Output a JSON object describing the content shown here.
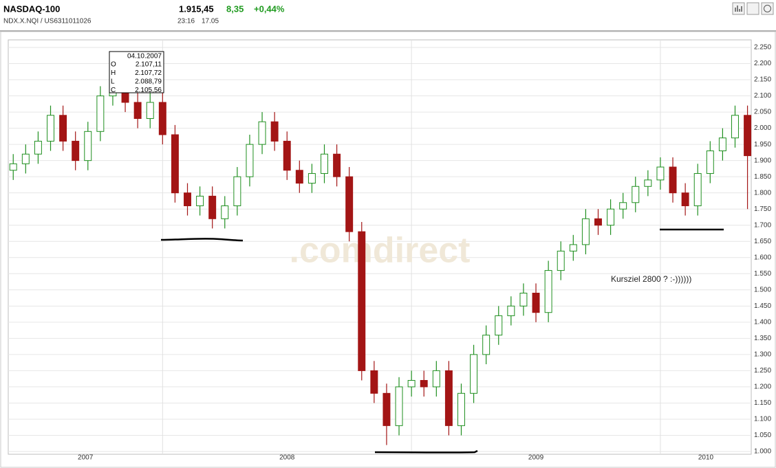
{
  "header": {
    "title": "NASDAQ-100",
    "ids": "NDX.X.NQI  /  US6311011026",
    "price": "1.915,45",
    "change": "8,35",
    "change_pct": "+0,44%",
    "time": "23:16",
    "date": "17.05"
  },
  "tooltip": {
    "date": "04.10.2007",
    "rows": [
      [
        "O",
        "2.107,11"
      ],
      [
        "H",
        "2.107,72"
      ],
      [
        "L",
        "2.088,79"
      ],
      [
        "C",
        "2.105,56"
      ]
    ]
  },
  "watermark": ".comdirect",
  "chart_data": {
    "type": "candlestick",
    "annotation": "Kursziel 2800 ? :-))))))",
    "up_color": "#1f8f1f",
    "down_color": "#a31515",
    "x": [
      2007.4,
      2007.45,
      2007.5,
      2007.55,
      2007.6,
      2007.65,
      2007.7,
      2007.75,
      2007.8,
      2007.85,
      2007.9,
      2007.95,
      2008.0,
      2008.05,
      2008.1,
      2008.15,
      2008.2,
      2008.25,
      2008.3,
      2008.35,
      2008.4,
      2008.45,
      2008.5,
      2008.55,
      2008.6,
      2008.65,
      2008.7,
      2008.75,
      2008.8,
      2008.85,
      2008.9,
      2008.95,
      2009.0,
      2009.05,
      2009.1,
      2009.15,
      2009.2,
      2009.25,
      2009.3,
      2009.35,
      2009.4,
      2009.45,
      2009.5,
      2009.55,
      2009.6,
      2009.65,
      2009.7,
      2009.75,
      2009.8,
      2009.85,
      2009.9,
      2009.95,
      2010.0,
      2010.05,
      2010.1,
      2010.15,
      2010.2,
      2010.25,
      2010.3,
      2010.35
    ],
    "open": [
      1870,
      1890,
      1920,
      1960,
      2040,
      1960,
      1900,
      1990,
      2100,
      2180,
      2080,
      2030,
      2080,
      1980,
      1800,
      1760,
      1790,
      1720,
      1760,
      1850,
      1950,
      2020,
      1960,
      1870,
      1830,
      1860,
      1920,
      1850,
      1680,
      1250,
      1180,
      1080,
      1200,
      1220,
      1200,
      1250,
      1080,
      1180,
      1300,
      1360,
      1420,
      1450,
      1490,
      1430,
      1560,
      1620,
      1640,
      1720,
      1700,
      1750,
      1770,
      1820,
      1840,
      1880,
      1800,
      1760,
      1860,
      1930,
      1970,
      2040
    ],
    "high": [
      1920,
      1950,
      1990,
      2070,
      2070,
      1990,
      2020,
      2130,
      2210,
      2210,
      2110,
      2110,
      2110,
      2010,
      1830,
      1820,
      1820,
      1790,
      1880,
      1980,
      2050,
      2050,
      1990,
      1900,
      1890,
      1950,
      1950,
      1880,
      1710,
      1280,
      1210,
      1230,
      1250,
      1250,
      1280,
      1280,
      1210,
      1330,
      1390,
      1450,
      1480,
      1520,
      1520,
      1590,
      1650,
      1670,
      1750,
      1750,
      1780,
      1800,
      1850,
      1870,
      1910,
      1910,
      1830,
      1890,
      1960,
      2000,
      2070,
      2070
    ],
    "low": [
      1840,
      1860,
      1890,
      1930,
      1930,
      1870,
      1870,
      1960,
      2070,
      2050,
      2000,
      2000,
      1950,
      1770,
      1730,
      1730,
      1690,
      1690,
      1730,
      1820,
      1920,
      1930,
      1840,
      1800,
      1800,
      1830,
      1820,
      1650,
      1220,
      1150,
      1020,
      1050,
      1170,
      1170,
      1170,
      1050,
      1050,
      1150,
      1270,
      1330,
      1390,
      1420,
      1400,
      1400,
      1530,
      1590,
      1610,
      1670,
      1670,
      1720,
      1740,
      1790,
      1810,
      1770,
      1730,
      1730,
      1830,
      1900,
      1940,
      1750
    ],
    "close": [
      1890,
      1920,
      1960,
      2040,
      1960,
      1900,
      1990,
      2100,
      2180,
      2080,
      2030,
      2080,
      1980,
      1800,
      1760,
      1790,
      1720,
      1760,
      1850,
      1950,
      2020,
      1960,
      1870,
      1830,
      1860,
      1920,
      1850,
      1680,
      1250,
      1180,
      1080,
      1200,
      1220,
      1200,
      1250,
      1080,
      1180,
      1300,
      1360,
      1420,
      1450,
      1490,
      1430,
      1560,
      1620,
      1640,
      1720,
      1700,
      1750,
      1770,
      1820,
      1840,
      1880,
      1800,
      1760,
      1860,
      1930,
      1970,
      2040,
      1915
    ],
    "xlim": [
      2007.38,
      2010.365
    ],
    "xgrid": [
      2008,
      2009,
      2010
    ],
    "xlabels": [
      "2007",
      "2008",
      "2009",
      "2010"
    ],
    "ylim": [
      1000,
      2250
    ],
    "yticks": [
      {
        "value": 1000,
        "label": "1.000"
      },
      {
        "value": 1050,
        "label": "1.050"
      },
      {
        "value": 1100,
        "label": "1.100"
      },
      {
        "value": 1150,
        "label": "1.150"
      },
      {
        "value": 1200,
        "label": "1.200"
      },
      {
        "value": 1250,
        "label": "1.250"
      },
      {
        "value": 1300,
        "label": "1.300"
      },
      {
        "value": 1350,
        "label": "1.350"
      },
      {
        "value": 1400,
        "label": "1.400"
      },
      {
        "value": 1450,
        "label": "1.450"
      },
      {
        "value": 1500,
        "label": "1.500"
      },
      {
        "value": 1550,
        "label": "1.550"
      },
      {
        "value": 1600,
        "label": "1.600"
      },
      {
        "value": 1650,
        "label": "1.650"
      },
      {
        "value": 1700,
        "label": "1.700"
      },
      {
        "value": 1750,
        "label": "1.750"
      },
      {
        "value": 1800,
        "label": "1.800"
      },
      {
        "value": 1850,
        "label": "1.850"
      },
      {
        "value": 1900,
        "label": "1.900"
      },
      {
        "value": 1950,
        "label": "1.950"
      },
      {
        "value": 2000,
        "label": "2.000"
      },
      {
        "value": 2050,
        "label": "2.050"
      },
      {
        "value": 2100,
        "label": "2.100"
      },
      {
        "value": 2150,
        "label": "2.150"
      },
      {
        "value": 2200,
        "label": "2.200"
      },
      {
        "value": 2250,
        "label": "2.250"
      }
    ],
    "grid": true
  }
}
